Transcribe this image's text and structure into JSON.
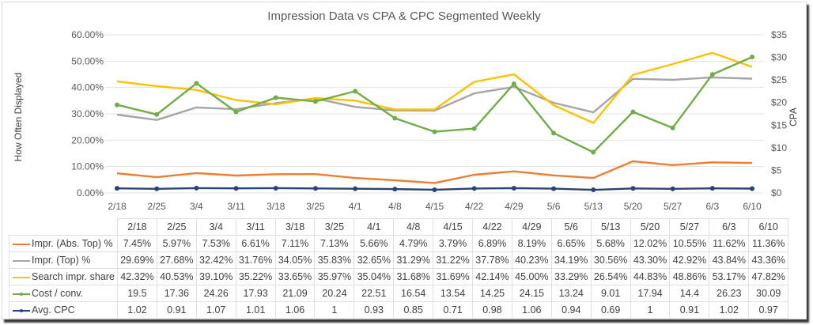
{
  "chart_data": {
    "type": "line",
    "title": "Impression Data vs CPA & CPC Segmented Weekly",
    "ylabel": "How Often Displayed",
    "y2label": "CPA",
    "ylim": [
      0,
      0.6
    ],
    "y2lim": [
      0,
      35
    ],
    "yticks": [
      "0.00%",
      "10.00%",
      "20.00%",
      "30.00%",
      "40.00%",
      "50.00%",
      "60.00%"
    ],
    "y2ticks": [
      "$0",
      "$5",
      "$10",
      "$15",
      "$20",
      "$25",
      "$30",
      "$35"
    ],
    "grid": true,
    "legend": "data-table",
    "categories": [
      "2/18",
      "2/25",
      "3/4",
      "3/11",
      "3/18",
      "3/25",
      "4/1",
      "4/8",
      "4/15",
      "4/22",
      "4/29",
      "5/6",
      "5/13",
      "5/20",
      "5/27",
      "6/3",
      "6/10"
    ],
    "series": [
      {
        "name": "Impr. (Abs. Top) %",
        "axis": "left",
        "color": "#ED7D31",
        "marker": false,
        "values": [
          7.45,
          5.97,
          7.53,
          6.61,
          7.11,
          7.13,
          5.66,
          4.79,
          3.79,
          6.89,
          8.19,
          6.65,
          5.68,
          12.02,
          10.55,
          11.62,
          11.36
        ],
        "labels": [
          "7.45%",
          "5.97%",
          "7.53%",
          "6.61%",
          "7.11%",
          "7.13%",
          "5.66%",
          "4.79%",
          "3.79%",
          "6.89%",
          "8.19%",
          "6.65%",
          "5.68%",
          "12.02%",
          "10.55%",
          "11.62%",
          "11.36%"
        ]
      },
      {
        "name": "Impr. (Top) %",
        "axis": "left",
        "color": "#A5A5A5",
        "marker": false,
        "values": [
          29.69,
          27.68,
          32.42,
          31.76,
          34.05,
          35.83,
          32.65,
          31.29,
          31.22,
          37.78,
          40.23,
          34.19,
          30.56,
          43.3,
          42.92,
          43.84,
          43.36
        ],
        "labels": [
          "29.69%",
          "27.68%",
          "32.42%",
          "31.76%",
          "34.05%",
          "35.83%",
          "32.65%",
          "31.29%",
          "31.22%",
          "37.78%",
          "40.23%",
          "34.19%",
          "30.56%",
          "43.30%",
          "42.92%",
          "43.84%",
          "43.36%"
        ]
      },
      {
        "name": "Search impr. share",
        "axis": "left",
        "color": "#FFC000",
        "marker": false,
        "values": [
          42.32,
          40.53,
          39.1,
          35.22,
          33.65,
          35.97,
          35.04,
          31.68,
          31.69,
          42.14,
          45.0,
          33.29,
          26.54,
          44.83,
          48.86,
          53.17,
          47.82
        ],
        "labels": [
          "42.32%",
          "40.53%",
          "39.10%",
          "35.22%",
          "33.65%",
          "35.97%",
          "35.04%",
          "31.68%",
          "31.69%",
          "42.14%",
          "45.00%",
          "33.29%",
          "26.54%",
          "44.83%",
          "48.86%",
          "53.17%",
          "47.82%"
        ]
      },
      {
        "name": "Cost / conv.",
        "axis": "right",
        "color": "#70AD47",
        "marker": true,
        "values": [
          19.5,
          17.36,
          24.26,
          17.93,
          21.09,
          20.24,
          22.51,
          16.54,
          13.54,
          14.25,
          24.15,
          13.24,
          9.01,
          17.94,
          14.4,
          26.23,
          30.09
        ],
        "labels": [
          "19.5",
          "17.36",
          "24.26",
          "17.93",
          "21.09",
          "20.24",
          "22.51",
          "16.54",
          "13.54",
          "14.25",
          "24.15",
          "13.24",
          "9.01",
          "17.94",
          "14.4",
          "26.23",
          "30.09"
        ]
      },
      {
        "name": "Avg. CPC",
        "axis": "right",
        "color": "#264478",
        "marker": true,
        "values": [
          1.02,
          0.91,
          1.07,
          1.01,
          1.06,
          1,
          0.93,
          0.85,
          0.71,
          0.98,
          1.06,
          0.94,
          0.69,
          1,
          0.91,
          1.02,
          0.97
        ],
        "labels": [
          "1.02",
          "0.91",
          "1.07",
          "1.01",
          "1.06",
          "1",
          "0.93",
          "0.85",
          "0.71",
          "0.98",
          "1.06",
          "0.94",
          "0.69",
          "1",
          "0.91",
          "1.02",
          "0.97"
        ]
      }
    ]
  }
}
